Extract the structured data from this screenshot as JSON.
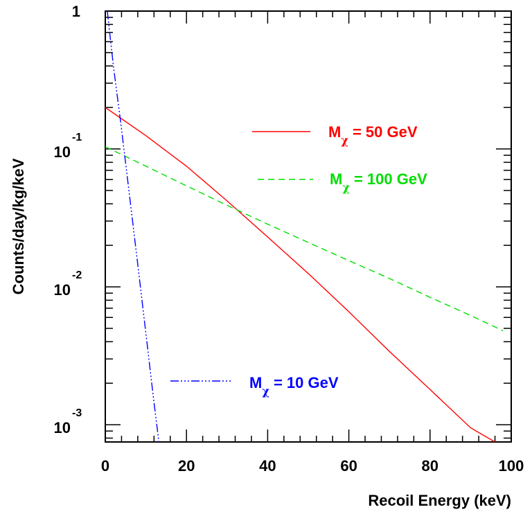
{
  "chart_data": {
    "type": "line",
    "title": "",
    "xlabel": "Recoil Energy (keV)",
    "ylabel": "Counts/day/kg/keV",
    "xlim": [
      0,
      100
    ],
    "ylim": [
      0.00075,
      1
    ],
    "yscale": "log",
    "grid": false,
    "legend_placement": "inline",
    "xticks": [
      {
        "value": 0,
        "label": "0"
      },
      {
        "value": 20,
        "label": "20"
      },
      {
        "value": 40,
        "label": "40"
      },
      {
        "value": 60,
        "label": "60"
      },
      {
        "value": 80,
        "label": "80"
      },
      {
        "value": 100,
        "label": "100"
      }
    ],
    "yticks": [
      {
        "value": 0.001,
        "base": "10",
        "exp": "-3"
      },
      {
        "value": 0.01,
        "base": "10",
        "exp": "-2"
      },
      {
        "value": 0.1,
        "base": "10",
        "exp": "-1"
      },
      {
        "value": 1,
        "base": "1",
        "exp": ""
      }
    ],
    "series": [
      {
        "name": "M",
        "subscript": "χ",
        "suffix": " = 50 GeV",
        "color": "#ff0000",
        "dash": "",
        "x": [
          0,
          10,
          20,
          30,
          40,
          50,
          60,
          70,
          80,
          90,
          96
        ],
        "y": [
          0.2,
          0.125,
          0.075,
          0.042,
          0.023,
          0.0125,
          0.0066,
          0.0034,
          0.0018,
          0.00095,
          0.00075
        ]
      },
      {
        "name": "M",
        "subscript": "χ",
        "suffix": " = 100 GeV",
        "color": "#00dd00",
        "dash": "9,6",
        "x": [
          0,
          10,
          20,
          30,
          40,
          50,
          60,
          70,
          80,
          90,
          98
        ],
        "y": [
          0.104,
          0.075,
          0.054,
          0.039,
          0.0285,
          0.021,
          0.0155,
          0.0115,
          0.0084,
          0.0062,
          0.0048
        ]
      },
      {
        "name": "M",
        "subscript": "χ",
        "suffix": " = 10 GeV",
        "color": "#0000ff",
        "dash": "12,3,2,3,2,3,2,3",
        "x": [
          0.5,
          2,
          4,
          6,
          8,
          10,
          12,
          13.2
        ],
        "y": [
          1.0,
          0.4,
          0.14,
          0.045,
          0.0145,
          0.0046,
          0.00145,
          0.00075
        ]
      }
    ]
  }
}
